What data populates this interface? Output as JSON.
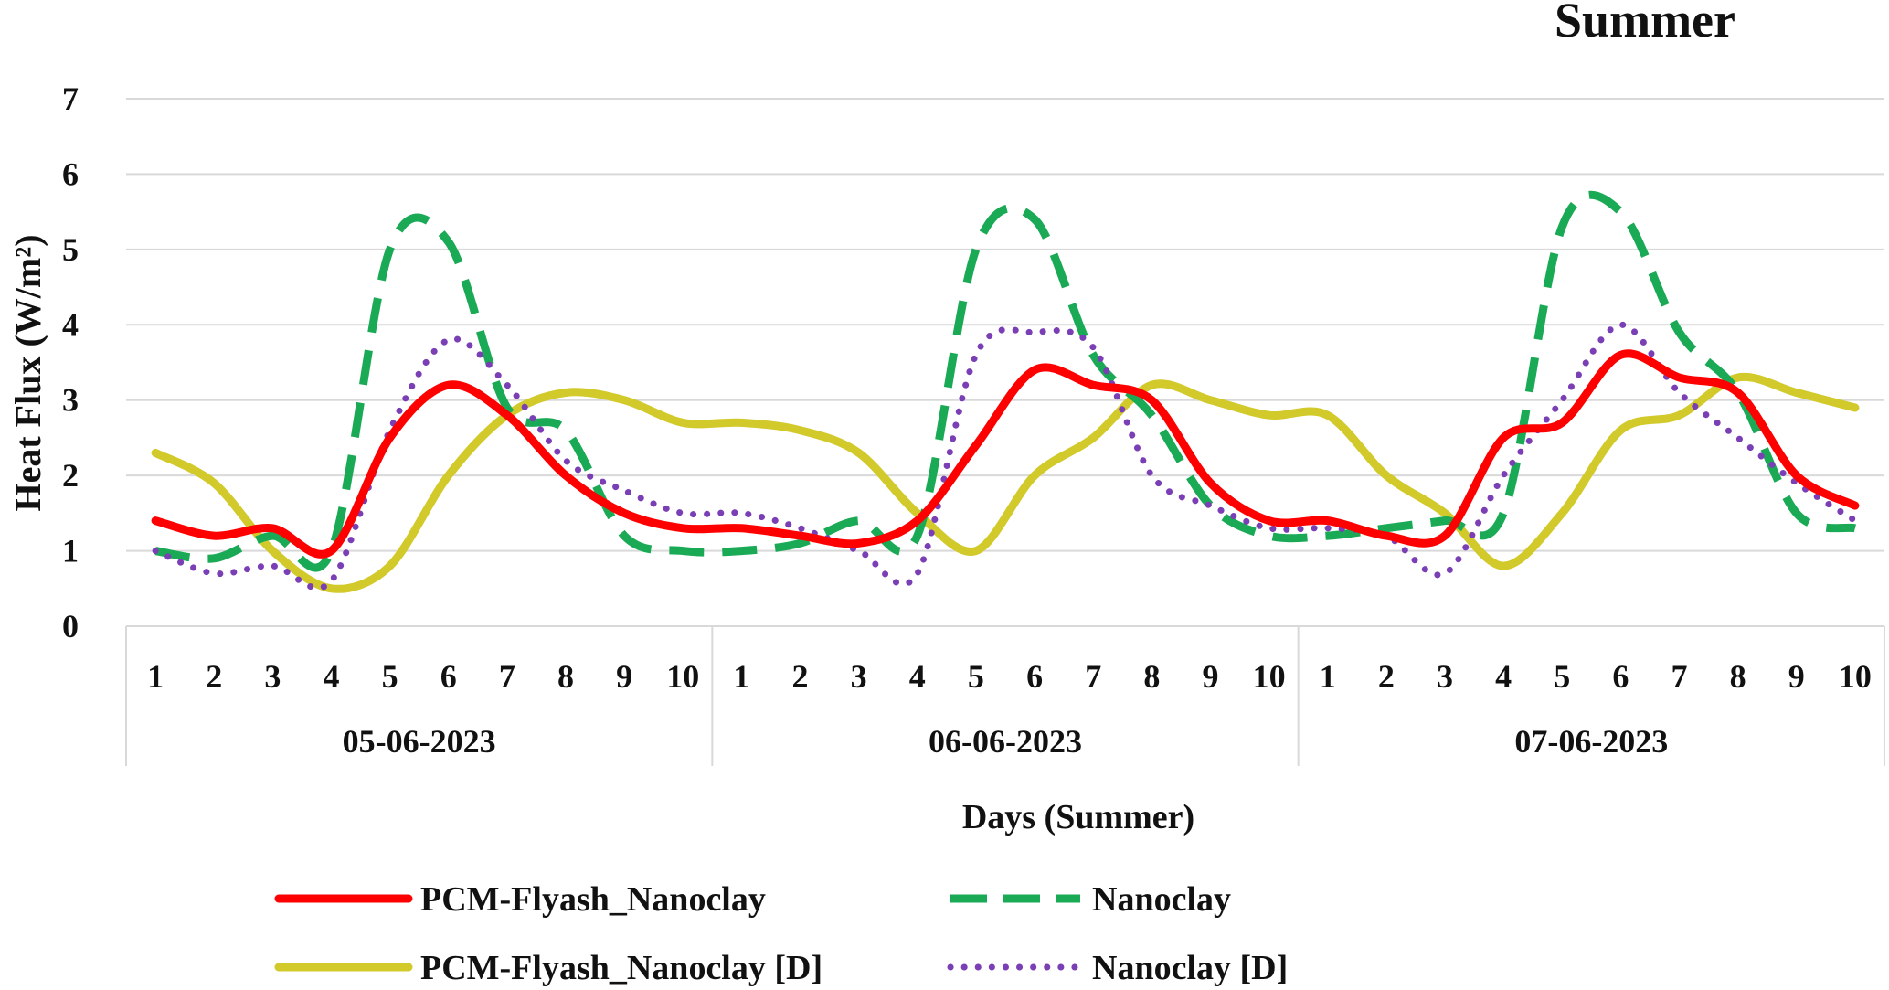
{
  "chart_data": {
    "type": "line",
    "title": "Summer",
    "xlabel": "Days (Summer)",
    "ylabel": "Heat Flux (W/m²)",
    "ylim": [
      0,
      7
    ],
    "yticks": [
      0,
      1,
      2,
      3,
      4,
      5,
      6,
      7
    ],
    "grid": true,
    "legend_position": "bottom",
    "groups": [
      {
        "label": "05-06-2023",
        "days": [
          "1",
          "2",
          "3",
          "4",
          "5",
          "6",
          "7",
          "8",
          "9",
          "10"
        ]
      },
      {
        "label": "06-06-2023",
        "days": [
          "1",
          "2",
          "3",
          "4",
          "5",
          "6",
          "7",
          "8",
          "9",
          "10"
        ]
      },
      {
        "label": "07-06-2023",
        "days": [
          "1",
          "2",
          "3",
          "4",
          "5",
          "6",
          "7",
          "8",
          "9",
          "10"
        ]
      }
    ],
    "series": [
      {
        "name": "PCM-Flyash_Nanoclay",
        "color": "#ff0000",
        "style": "solid",
        "values": [
          1.4,
          1.2,
          1.3,
          1.0,
          2.5,
          3.2,
          2.8,
          2.0,
          1.5,
          1.3,
          1.3,
          1.2,
          1.1,
          1.4,
          2.4,
          3.4,
          3.2,
          3.0,
          1.9,
          1.4,
          1.4,
          1.2,
          1.2,
          2.5,
          2.7,
          3.6,
          3.3,
          3.1,
          2.0,
          1.6
        ]
      },
      {
        "name": "Nanoclay",
        "color": "#1aaa55",
        "style": "dashed",
        "values": [
          1.0,
          0.9,
          1.2,
          1.0,
          5.0,
          5.1,
          2.9,
          2.6,
          1.2,
          1.0,
          1.0,
          1.1,
          1.4,
          1.2,
          5.0,
          5.4,
          3.6,
          2.8,
          1.6,
          1.2,
          1.2,
          1.3,
          1.4,
          1.5,
          5.3,
          5.5,
          3.9,
          3.1,
          1.5,
          1.3
        ]
      },
      {
        "name": "PCM-Flyash_Nanoclay [D]",
        "color": "#d2c92a",
        "style": "solid",
        "values": [
          2.3,
          1.9,
          1.0,
          0.5,
          0.8,
          2.0,
          2.8,
          3.1,
          3.0,
          2.7,
          2.7,
          2.6,
          2.3,
          1.5,
          1.0,
          2.0,
          2.5,
          3.2,
          3.0,
          2.8,
          2.8,
          2.0,
          1.5,
          0.8,
          1.5,
          2.6,
          2.8,
          3.3,
          3.1,
          2.9
        ]
      },
      {
        "name": "Nanoclay [D]",
        "color": "#7b3fb5",
        "style": "dotted",
        "values": [
          1.0,
          0.7,
          0.8,
          0.6,
          2.6,
          3.8,
          3.2,
          2.2,
          1.8,
          1.5,
          1.5,
          1.3,
          1.0,
          0.7,
          3.6,
          3.9,
          3.7,
          2.0,
          1.6,
          1.3,
          1.3,
          1.2,
          0.7,
          2.0,
          3.0,
          4.0,
          3.1,
          2.5,
          1.9,
          1.4
        ]
      }
    ]
  }
}
